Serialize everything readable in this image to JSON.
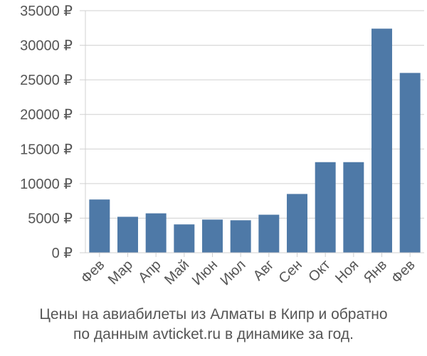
{
  "chart_data": {
    "type": "bar",
    "categories": [
      "Фев",
      "Мар",
      "Апр",
      "Май",
      "Июн",
      "Июл",
      "Авг",
      "Сен",
      "Окт",
      "Ноя",
      "Янв",
      "Фев"
    ],
    "series": [
      {
        "values": [
          7700,
          5200,
          5700,
          4100,
          4800,
          4700,
          5500,
          8500,
          13100,
          13100,
          32400,
          26000
        ]
      }
    ],
    "ylim": [
      0,
      35000
    ],
    "yticks": [
      0,
      5000,
      10000,
      15000,
      20000,
      25000,
      30000,
      35000
    ],
    "ytick_labels": [
      "0 ₽",
      "5000 ₽",
      "10000 ₽",
      "15000 ₽",
      "20000 ₽",
      "25000 ₽",
      "30000 ₽",
      "35000 ₽"
    ],
    "grid": true,
    "bar_color": "#4e79a7"
  },
  "caption": {
    "line1": "Цены на авиабилеты из Алматы в Кипр и обратно",
    "line2": "по данным avticket.ru в динамике за год."
  }
}
